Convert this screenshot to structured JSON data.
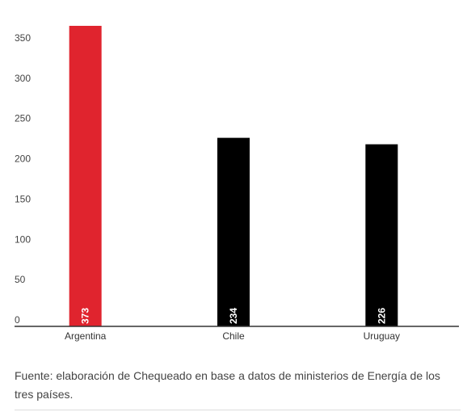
{
  "chart_data": {
    "type": "bar",
    "title": "",
    "xlabel": "",
    "ylabel": "",
    "categories": [
      "Argentina",
      "Chile",
      "Uruguay"
    ],
    "values": [
      373,
      234,
      226
    ],
    "value_labels": [
      "373",
      "234",
      "226"
    ],
    "bar_colors": [
      "#e0242e",
      "#000000",
      "#000000"
    ],
    "ylim": [
      0,
      380
    ],
    "yticks": [
      0,
      50,
      100,
      150,
      200,
      250,
      300,
      350
    ],
    "ytick_labels": [
      "0",
      "50",
      "100",
      "150",
      "200",
      "250",
      "300",
      "350"
    ],
    "grid": false,
    "legend": "none"
  },
  "source_note": "Fuente: elaboración de Chequeado en base a datos de ministerios de Energía de los tres países."
}
